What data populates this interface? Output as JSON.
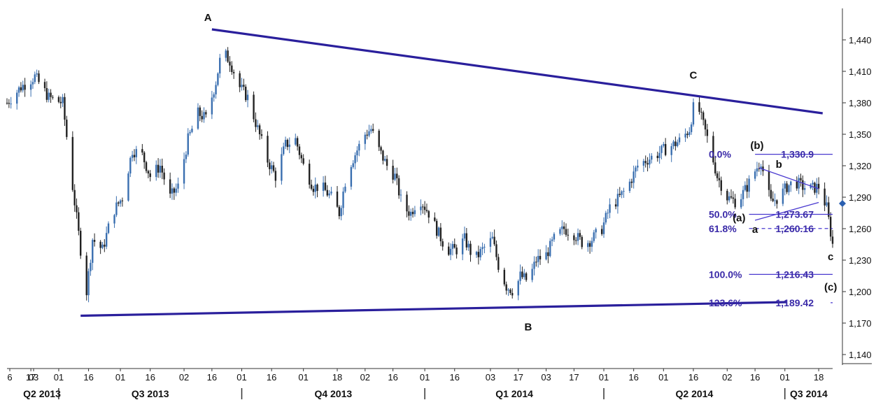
{
  "chart_data": {
    "type": "candlestick",
    "y_axis": {
      "ticks": [
        1140,
        1170,
        1200,
        1230,
        1260,
        1290,
        1320,
        1350,
        1380,
        1410,
        1440
      ],
      "tick_labels": [
        "1,140",
        "1,170",
        "1,200",
        "1,230",
        "1,260",
        "1,290",
        "1,320",
        "1,350",
        "1,380",
        "1,410",
        "1,440"
      ],
      "ylim": [
        1130,
        1470
      ],
      "current_price": 1284
    },
    "x_axis": {
      "xlim": [
        "2013-06-05",
        "2014-07-25"
      ],
      "day_ticks": [
        {
          "date": "2013-06-06",
          "label": "6"
        },
        {
          "date": "2013-06-03",
          "label": "03"
        },
        {
          "date": "2013-06-17",
          "label": "17"
        },
        {
          "date": "2013-07-01",
          "label": "01"
        },
        {
          "date": "2013-07-16",
          "label": "16"
        },
        {
          "date": "2013-08-01",
          "label": "01"
        },
        {
          "date": "2013-08-16",
          "label": "16"
        },
        {
          "date": "2013-09-02",
          "label": "02"
        },
        {
          "date": "2013-09-16",
          "label": "16"
        },
        {
          "date": "2013-10-01",
          "label": "01"
        },
        {
          "date": "2013-10-16",
          "label": "16"
        },
        {
          "date": "2013-11-01",
          "label": "01"
        },
        {
          "date": "2013-11-18",
          "label": "18"
        },
        {
          "date": "2013-12-02",
          "label": "02"
        },
        {
          "date": "2013-12-16",
          "label": "16"
        },
        {
          "date": "2014-01-01",
          "label": "01"
        },
        {
          "date": "2014-01-16",
          "label": "16"
        },
        {
          "date": "2014-02-03",
          "label": "03"
        },
        {
          "date": "2014-02-17",
          "label": "17"
        },
        {
          "date": "2014-03-03",
          "label": "03"
        },
        {
          "date": "2014-03-17",
          "label": "17"
        },
        {
          "date": "2014-04-01",
          "label": "01"
        },
        {
          "date": "2014-04-16",
          "label": "16"
        },
        {
          "date": "2014-05-01",
          "label": "01"
        },
        {
          "date": "2014-05-16",
          "label": "16"
        },
        {
          "date": "2014-06-02",
          "label": "02"
        },
        {
          "date": "2014-06-16",
          "label": "16"
        },
        {
          "date": "2014-07-01",
          "label": "01"
        },
        {
          "date": "2014-07-18",
          "label": "18"
        }
      ],
      "quarters": [
        {
          "label": "Q2 2013",
          "start": "2013-06-05",
          "end": "2013-07-01"
        },
        {
          "label": "Q3 2013",
          "start": "2013-07-01",
          "end": "2013-10-01"
        },
        {
          "label": "Q4 2013",
          "start": "2013-10-01",
          "end": "2014-01-01"
        },
        {
          "label": "Q1 2014",
          "start": "2014-01-01",
          "end": "2014-04-01"
        },
        {
          "label": "Q2 2014",
          "start": "2014-04-01",
          "end": "2014-07-01"
        },
        {
          "label": "Q3 2014",
          "start": "2014-07-01",
          "end": "2014-07-25"
        }
      ]
    },
    "price_path": [
      [
        "2013-06-05",
        1380
      ],
      [
        "2013-06-12",
        1395
      ],
      [
        "2013-06-19",
        1405
      ],
      [
        "2013-06-26",
        1385
      ],
      [
        "2013-07-03",
        1380
      ],
      [
        "2013-07-08",
        1300
      ],
      [
        "2013-07-12",
        1240
      ],
      [
        "2013-07-15",
        1200
      ],
      [
        "2013-07-18",
        1250
      ],
      [
        "2013-07-23",
        1240
      ],
      [
        "2013-07-28",
        1275
      ],
      [
        "2013-08-02",
        1290
      ],
      [
        "2013-08-07",
        1335
      ],
      [
        "2013-08-12",
        1330
      ],
      [
        "2013-08-16",
        1310
      ],
      [
        "2013-08-21",
        1320
      ],
      [
        "2013-08-26",
        1290
      ],
      [
        "2013-08-30",
        1300
      ],
      [
        "2013-09-04",
        1345
      ],
      [
        "2013-09-09",
        1370
      ],
      [
        "2013-09-13",
        1365
      ],
      [
        "2013-09-18",
        1400
      ],
      [
        "2013-09-21",
        1430
      ],
      [
        "2013-09-25",
        1420
      ],
      [
        "2013-09-30",
        1395
      ],
      [
        "2013-10-04",
        1385
      ],
      [
        "2013-10-09",
        1355
      ],
      [
        "2013-10-14",
        1325
      ],
      [
        "2013-10-18",
        1310
      ],
      [
        "2013-10-23",
        1340
      ],
      [
        "2013-10-28",
        1345
      ],
      [
        "2013-11-01",
        1320
      ],
      [
        "2013-11-06",
        1300
      ],
      [
        "2013-11-10",
        1300
      ],
      [
        "2013-11-15",
        1290
      ],
      [
        "2013-11-19",
        1275
      ],
      [
        "2013-11-23",
        1315
      ],
      [
        "2013-11-28",
        1335
      ],
      [
        "2013-12-02",
        1350
      ],
      [
        "2013-12-05",
        1355
      ],
      [
        "2013-12-09",
        1335
      ],
      [
        "2013-12-13",
        1320
      ],
      [
        "2013-12-17",
        1310
      ],
      [
        "2013-12-21",
        1280
      ],
      [
        "2013-12-25",
        1275
      ],
      [
        "2013-12-29",
        1290
      ],
      [
        "2014-01-03",
        1275
      ],
      [
        "2014-01-08",
        1255
      ],
      [
        "2014-01-12",
        1240
      ],
      [
        "2014-01-17",
        1240
      ],
      [
        "2014-01-21",
        1250
      ],
      [
        "2014-01-26",
        1230
      ],
      [
        "2014-01-30",
        1240
      ],
      [
        "2014-02-04",
        1250
      ],
      [
        "2014-02-07",
        1225
      ],
      [
        "2014-02-11",
        1205
      ],
      [
        "2014-02-15",
        1200
      ],
      [
        "2014-02-18",
        1215
      ],
      [
        "2014-02-22",
        1210
      ],
      [
        "2014-02-26",
        1230
      ],
      [
        "2014-03-03",
        1235
      ],
      [
        "2014-03-07",
        1250
      ],
      [
        "2014-03-12",
        1260
      ],
      [
        "2014-03-17",
        1255
      ],
      [
        "2014-03-22",
        1245
      ],
      [
        "2014-03-26",
        1250
      ],
      [
        "2014-03-31",
        1260
      ],
      [
        "2014-04-04",
        1280
      ],
      [
        "2014-04-09",
        1290
      ],
      [
        "2014-04-13",
        1300
      ],
      [
        "2014-04-18",
        1320
      ],
      [
        "2014-04-22",
        1325
      ],
      [
        "2014-04-27",
        1330
      ],
      [
        "2014-05-01",
        1335
      ],
      [
        "2014-05-06",
        1340
      ],
      [
        "2014-05-10",
        1345
      ],
      [
        "2014-05-14",
        1355
      ],
      [
        "2014-05-17",
        1385
      ],
      [
        "2014-05-20",
        1365
      ],
      [
        "2014-05-24",
        1340
      ],
      [
        "2014-05-28",
        1310
      ],
      [
        "2014-06-02",
        1290
      ],
      [
        "2014-06-07",
        1285
      ],
      [
        "2014-06-12",
        1300
      ],
      [
        "2014-06-16",
        1315
      ],
      [
        "2014-06-19",
        1325
      ],
      [
        "2014-06-21",
        1305
      ],
      [
        "2014-06-24",
        1285
      ],
      [
        "2014-06-28",
        1290
      ],
      [
        "2014-07-02",
        1300
      ],
      [
        "2014-07-06",
        1305
      ],
      [
        "2014-07-10",
        1300
      ],
      [
        "2014-07-14",
        1298
      ],
      [
        "2014-07-18",
        1300
      ],
      [
        "2014-07-22",
        1280
      ],
      [
        "2014-07-25",
        1245
      ]
    ],
    "trendlines": [
      {
        "from": [
          "2013-09-16",
          1450
        ],
        "to": [
          "2014-07-20",
          1370
        ]
      },
      {
        "from": [
          "2013-07-12",
          1177
        ],
        "to": [
          "2014-07-02",
          1190
        ]
      }
    ],
    "triangle_lines": [
      {
        "from": [
          "2014-06-18",
          1318
        ],
        "to": [
          "2014-07-18",
          1298
        ]
      },
      {
        "from": [
          "2014-06-16",
          1268
        ],
        "to": [
          "2014-07-18",
          1285
        ]
      }
    ],
    "wave_labels": [
      {
        "text": "A",
        "date": "2013-09-14",
        "price": 1458
      },
      {
        "text": "B",
        "date": "2014-02-22",
        "price": 1163
      },
      {
        "text": "C",
        "date": "2014-05-16",
        "price": 1403
      },
      {
        "text": "(b)",
        "date": "2014-06-17",
        "price": 1336
      },
      {
        "text": "(a)",
        "date": "2014-06-08",
        "price": 1267
      },
      {
        "text": "b",
        "date": "2014-06-28",
        "price": 1318
      },
      {
        "text": "a",
        "date": "2014-06-16",
        "price": 1256
      },
      {
        "text": "c",
        "date": "2014-07-24",
        "price": 1230
      },
      {
        "text": "(c)",
        "date": "2014-07-24",
        "price": 1201
      }
    ],
    "fib_levels": [
      {
        "label": "0.0%",
        "value_label": "1,330.9",
        "price": 1330.9,
        "style": "solid",
        "from": "2014-06-16"
      },
      {
        "label": "50.0%",
        "value_label": "1,273.67",
        "price": 1273.67,
        "style": "solid",
        "from": "2014-06-13"
      },
      {
        "label": "61.8%",
        "value_label": "1,260.16",
        "price": 1260.16,
        "style": "dashed",
        "from": "2014-06-13"
      },
      {
        "label": "100.0%",
        "value_label": "1,216.43",
        "price": 1216.43,
        "style": "solid",
        "from": "2014-06-13"
      },
      {
        "label": "123.6%",
        "value_label": "1,189.42",
        "price": 1189.42,
        "style": "dashed",
        "from": "2014-07-24"
      }
    ],
    "colors": {
      "up_candle": "#3a6fb0",
      "down_candle": "#222222",
      "trendline": "#2a1f9c",
      "fib_line": "#4a3ad0",
      "fib_text": "#3a2aa8",
      "marker": "#2a5fb0"
    }
  }
}
